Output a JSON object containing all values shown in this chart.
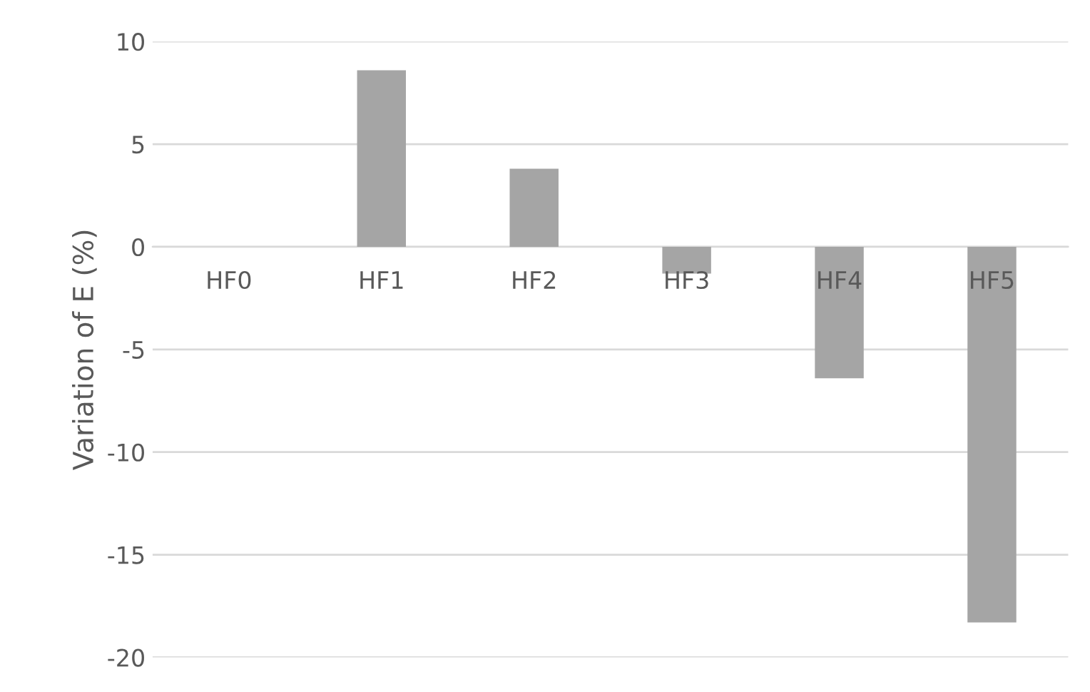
{
  "chart_data": {
    "type": "bar",
    "ylabel": "Variation of E (%)",
    "categories": [
      "HF0",
      "HF1",
      "HF2",
      "HF3",
      "HF4",
      "HF5"
    ],
    "values": [
      0,
      8.6,
      3.8,
      -1.3,
      -6.4,
      -18.3
    ],
    "color": "#a5a5a5",
    "ylim": [
      -20,
      10
    ],
    "yticks": [
      -20,
      -15,
      -10,
      -5,
      0,
      5,
      10
    ],
    "grid": "y"
  }
}
